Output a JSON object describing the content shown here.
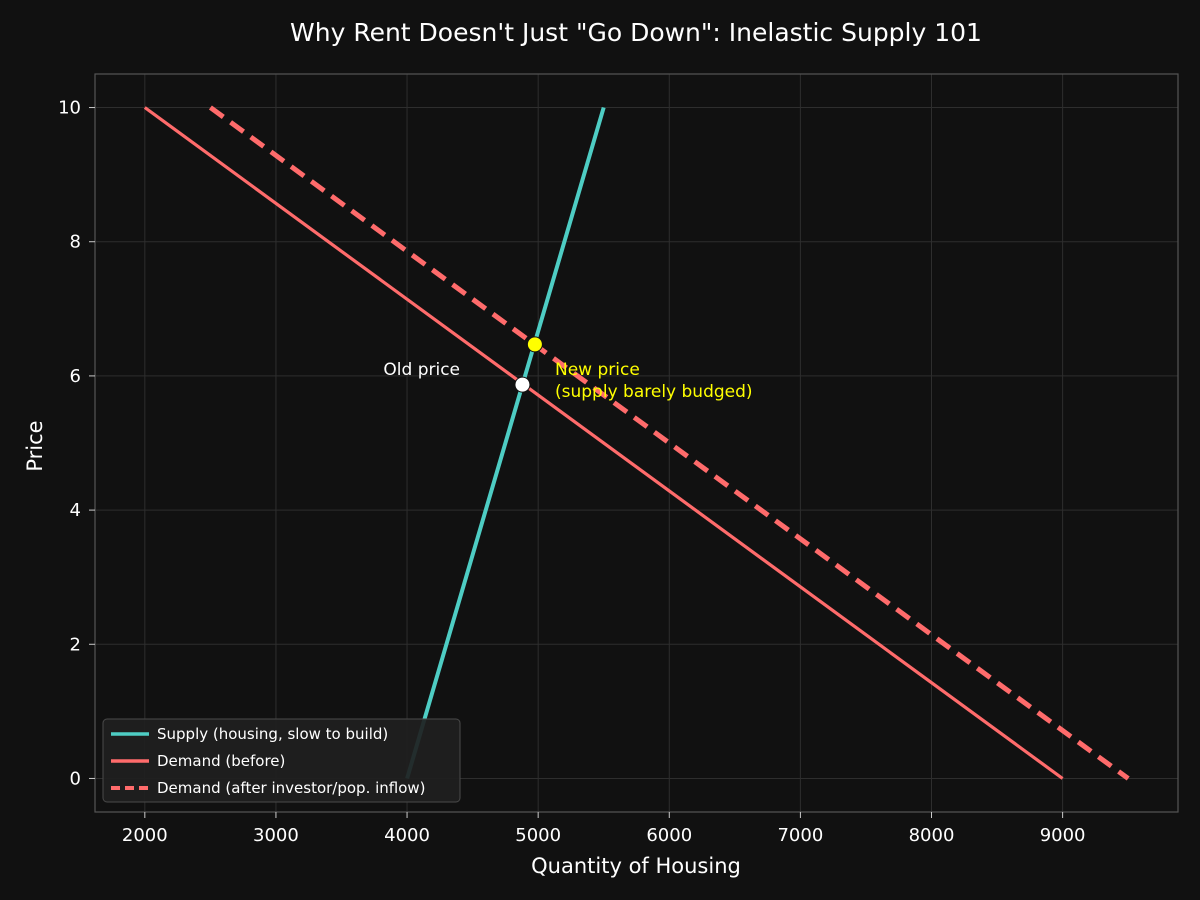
{
  "chart_data": {
    "type": "line",
    "title": "Why Rent Doesn't Just \"Go Down\": Inelastic Supply 101",
    "xlabel": "Quantity of Housing",
    "ylabel": "Price",
    "xlim": [
      1620,
      9880
    ],
    "ylim": [
      -0.5,
      10.5
    ],
    "xticks": [
      2000,
      3000,
      4000,
      5000,
      6000,
      7000,
      8000,
      9000
    ],
    "yticks": [
      0,
      2,
      4,
      6,
      8,
      10
    ],
    "grid": true,
    "legend_position": "lower-left",
    "series": [
      {
        "name": "Supply (housing, slow to build)",
        "style": "solid",
        "color": "#4ecdc4",
        "x": [
          4000,
          5500
        ],
        "y": [
          0,
          10
        ]
      },
      {
        "name": "Demand (before)",
        "style": "solid",
        "color": "#ff6b6b",
        "x": [
          2000,
          9000
        ],
        "y": [
          10,
          0
        ]
      },
      {
        "name": "Demand (after investor/pop. inflow)",
        "style": "dashed",
        "color": "#ff6b6b",
        "x": [
          2500,
          9500
        ],
        "y": [
          10,
          0
        ]
      }
    ],
    "points": [
      {
        "label": "old-equilibrium",
        "x": 4880,
        "y": 5.87,
        "color": "#ffffff"
      },
      {
        "label": "new-equilibrium",
        "x": 4975,
        "y": 6.47,
        "color": "#ffff00"
      }
    ],
    "annotations": [
      {
        "text": "Old price",
        "color": "#ffffff"
      },
      {
        "text": "New price",
        "color": "#ffff00"
      },
      {
        "text": "(supply barely budged)",
        "color": "#ffff00"
      }
    ]
  }
}
